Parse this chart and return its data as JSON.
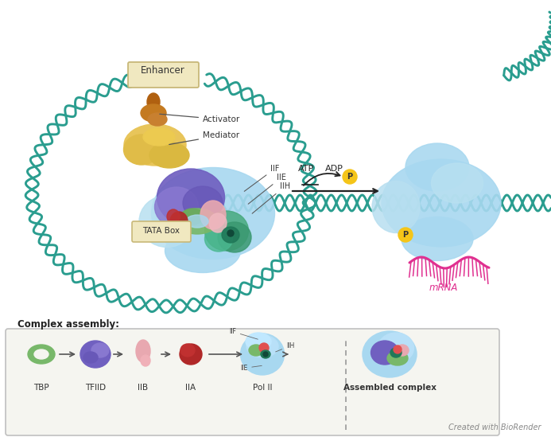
{
  "bg_color": "#ffffff",
  "dna_color": "#2a9d8f",
  "enhancer_box_color": "#f0e8c0",
  "enhancer_border": "#c8b878",
  "activator_color": "#c47a20",
  "mediator_color": "#e8c55a",
  "pol2_color": "#7b68c8",
  "tbp_color": "#78b86a",
  "tfiif_pink_color": "#e8a8b0",
  "tfiih_red_color": "#b83030",
  "tfiif_teal_color": "#3a8f70",
  "rna_pol_light": "#a8d8f0",
  "rna_pol_mid": "#90c8e8",
  "mRNA_color": "#e03090",
  "phospho_color": "#f5c518",
  "arrow_color": "#333333",
  "box_bg": "#f5f5f0",
  "box_border": "#c0c0c0",
  "dashed_color": "#999999",
  "tata_color": "#f0e8c0",
  "watermark": "Created with BioRender",
  "enhancer_label": "Enhancer",
  "activator_label": "Activator",
  "mediator_label": "Mediator",
  "tata_label": "TATA Box",
  "iif_label": "IIF",
  "iie_label": "IIE",
  "iih_label": "IIH",
  "atp_label": "ATP",
  "adp_label": "ADP",
  "mrna_label": "mRNA",
  "p_label": "P",
  "assembly_title": "Complex assembly:",
  "assembly_labels": [
    "TBP",
    "TFIID",
    "IIB",
    "IIA",
    "Pol II",
    "Assembled complex"
  ]
}
